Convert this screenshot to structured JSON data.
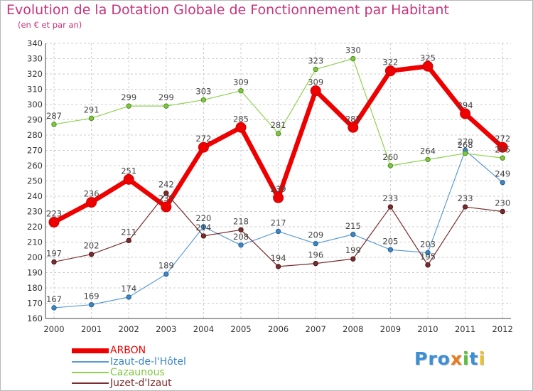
{
  "header": {
    "title": "Evolution de la Dotation Globale de Fonctionnement par Habitant",
    "subtitle": "(en € et par an)"
  },
  "logo": {
    "text": "Proxiti",
    "parts": [
      "Pro",
      "x",
      "i",
      "t",
      "i"
    ]
  },
  "colors": {
    "title": "#c8327a",
    "arbon": "#ee0000",
    "izaut": "#5b9bd5",
    "cazaunous": "#8fd14f",
    "juzet": "#7b2c2c",
    "grid": "#cccccc"
  },
  "chart_data": {
    "type": "line",
    "title": "Evolution de la Dotation Globale de Fonctionnement par Habitant",
    "ylabel": "(en € et par an)",
    "xlabel": "",
    "ylim": [
      160,
      340
    ],
    "yticks": [
      160,
      170,
      180,
      190,
      200,
      210,
      220,
      230,
      240,
      250,
      260,
      270,
      280,
      290,
      300,
      310,
      320,
      330,
      340
    ],
    "categories": [
      "2000",
      "2001",
      "2002",
      "2003",
      "2004",
      "2005",
      "2006",
      "2007",
      "2008",
      "2009",
      "2010",
      "2011",
      "2012"
    ],
    "grid": true,
    "legend_position": "bottom-left",
    "series": [
      {
        "name": "ARBON",
        "key": "arbon",
        "values": [
          223,
          236,
          251,
          233,
          272,
          285,
          239,
          309,
          285,
          322,
          325,
          294,
          272
        ]
      },
      {
        "name": "Izaut-de-l'Hôtel",
        "key": "izaut",
        "values": [
          167,
          169,
          174,
          189,
          220,
          208,
          217,
          209,
          215,
          205,
          203,
          270,
          249
        ]
      },
      {
        "name": "Cazaunous",
        "key": "cazaunous",
        "values": [
          287,
          291,
          299,
          299,
          303,
          309,
          281,
          323,
          330,
          260,
          264,
          268,
          265
        ]
      },
      {
        "name": "Juzet-d'Izaut",
        "key": "juzet",
        "values": [
          197,
          202,
          211,
          242,
          214,
          218,
          194,
          196,
          199,
          233,
          195,
          233,
          230
        ]
      }
    ]
  }
}
